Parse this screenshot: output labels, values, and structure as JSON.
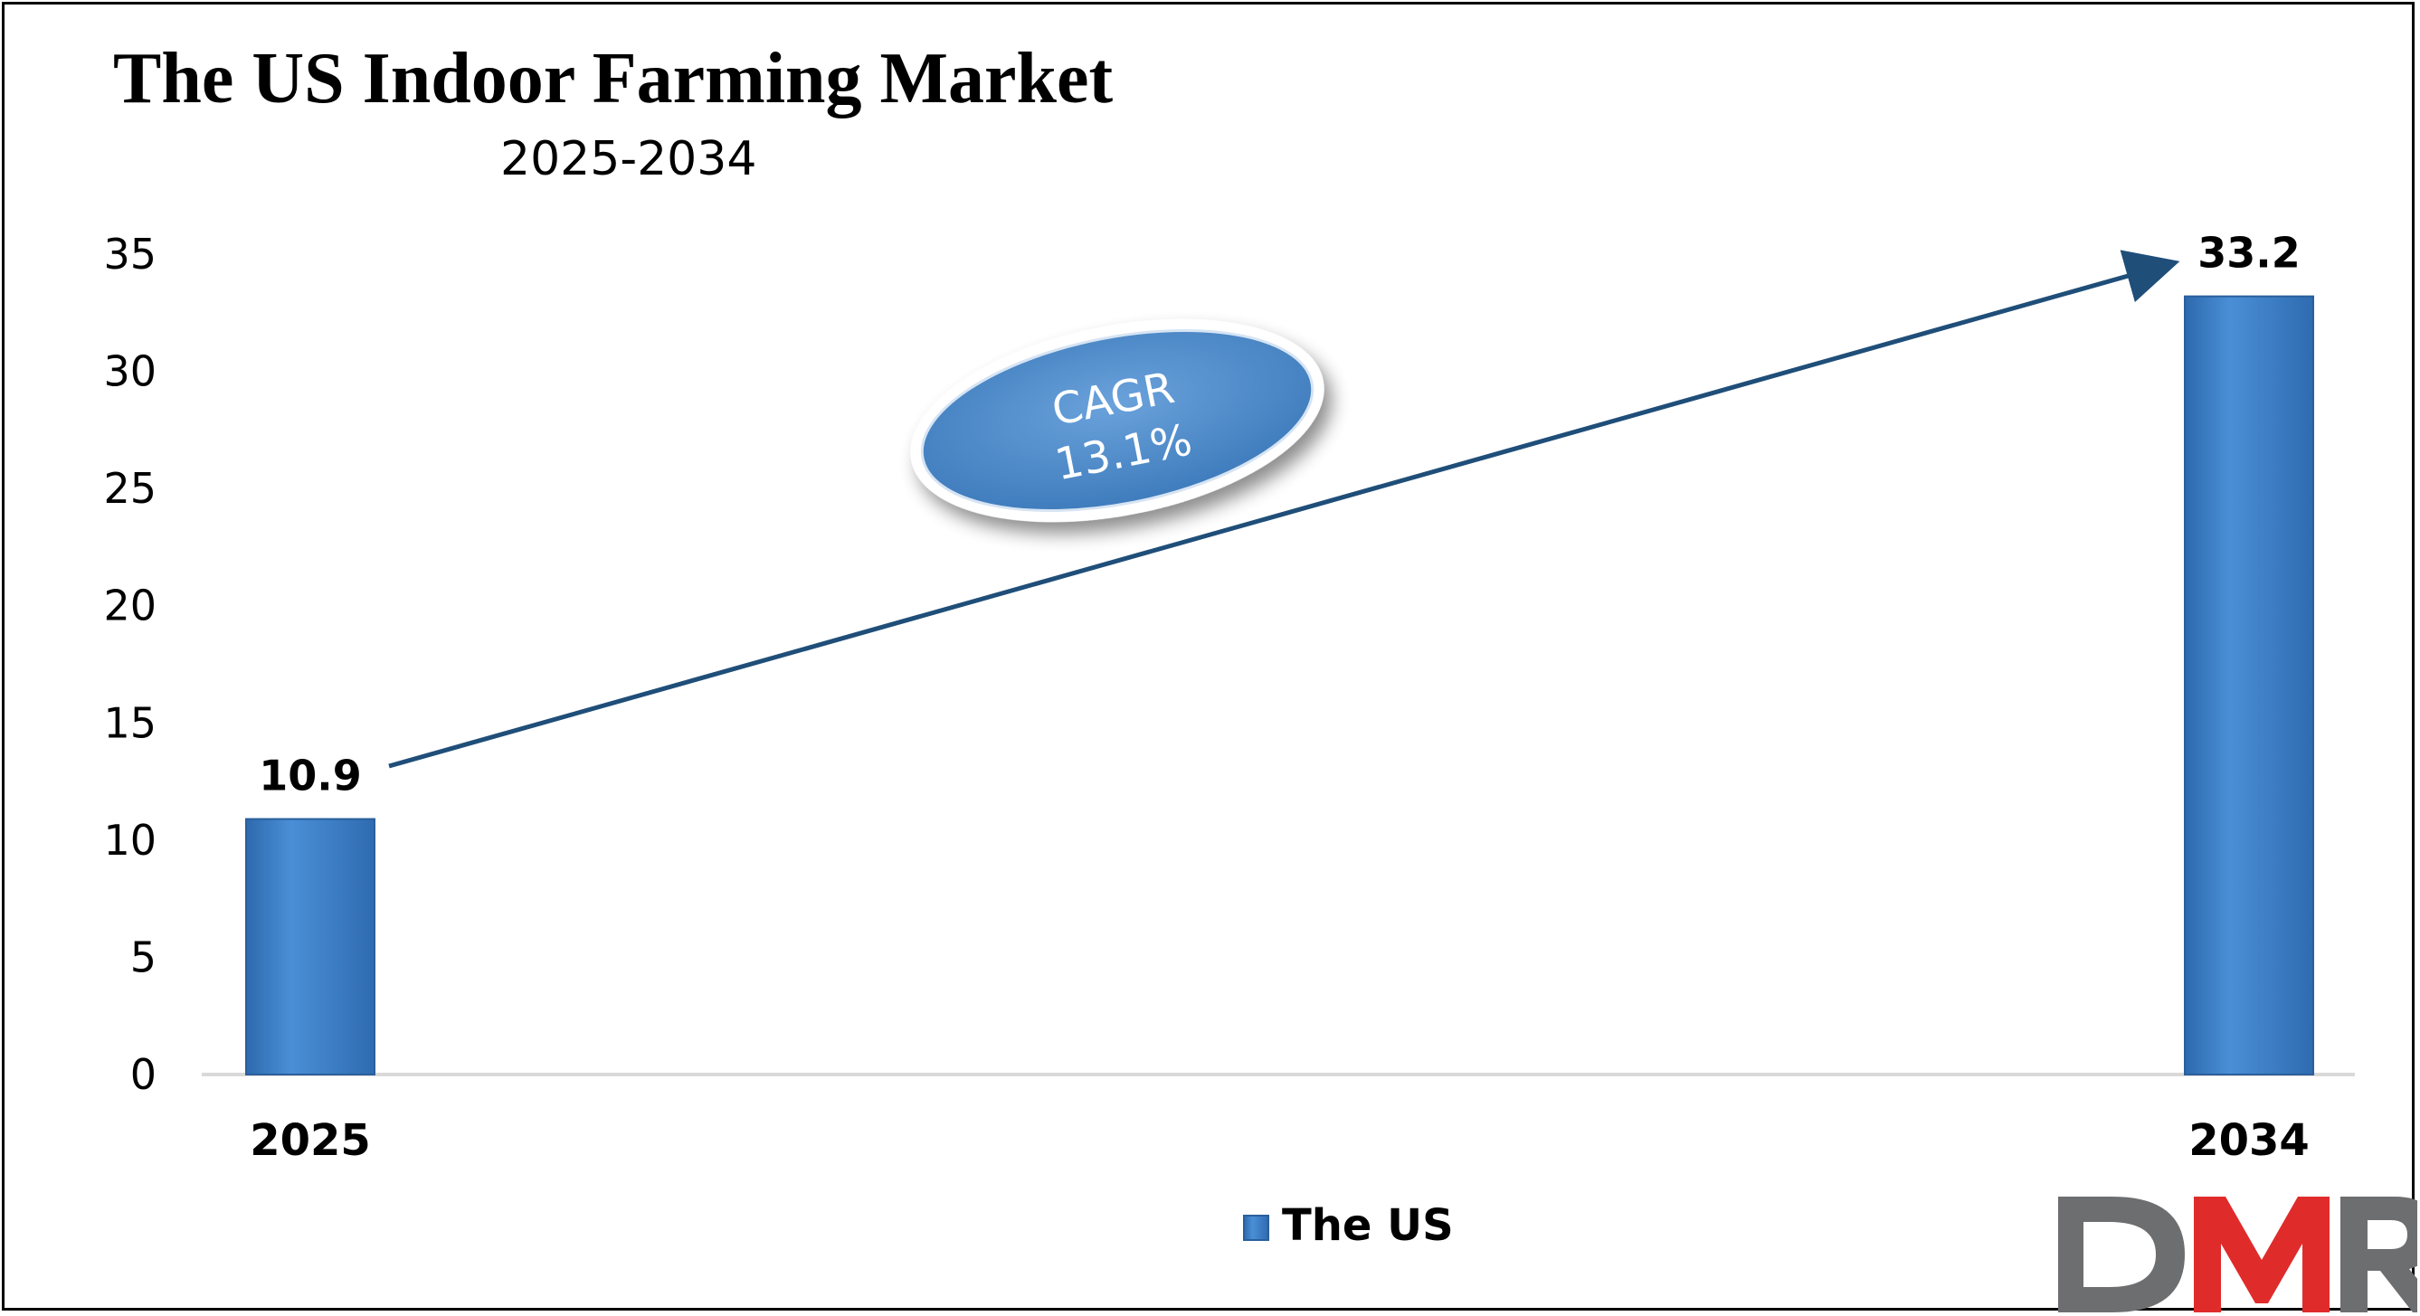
{
  "chart_data": {
    "type": "bar",
    "title": "The US Indoor Farming Market",
    "subtitle": "2025-2034",
    "categories": [
      "2025",
      "2034"
    ],
    "series": [
      {
        "name": "The US",
        "values": [
          10.9,
          33.2
        ],
        "labels": [
          "10.9",
          "33.2"
        ]
      }
    ],
    "ylim": [
      0,
      35
    ],
    "y_ticks": [
      "0",
      "5",
      "10",
      "15",
      "20",
      "25",
      "30",
      "35"
    ],
    "annotation": {
      "line1": "CAGR",
      "line2": "13.1%"
    },
    "legend_position": "bottom-center",
    "grid": false
  },
  "colors": {
    "bar": "#3a7dc5",
    "bar_dark": "#2a5f9c",
    "arrow": "#1f4e79",
    "ellipse": "#5b93cc",
    "logo_gray": "#6d6e70",
    "logo_red": "#e02b2b"
  },
  "logo": {
    "text": "DMR"
  }
}
